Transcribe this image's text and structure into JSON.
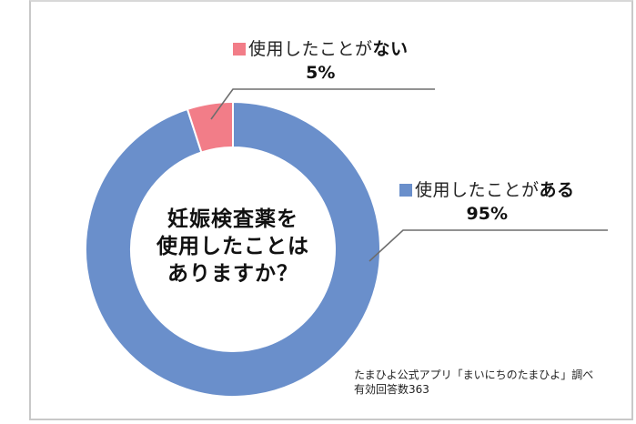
{
  "chart_data": {
    "type": "pie",
    "subtype": "donut",
    "title": "妊娠検査薬を使用したことはありますか？",
    "categories": [
      "使用したことがある",
      "使用したことがない"
    ],
    "values": [
      95,
      5
    ],
    "unit": "%",
    "colors": [
      "#6a8fcb",
      "#f27d88"
    ],
    "data_labels": [
      "95%",
      "5%"
    ],
    "legend": "inline data labels with leader lines",
    "source_note": "たまひよ公式アプリ「まいにちのたまひよ」調べ",
    "sample_size": 363
  },
  "center": {
    "line1": "妊娠検査薬を",
    "line2": "使用したことは",
    "line3": "ありますか？"
  },
  "labels": {
    "no": {
      "prefix": "使用したことが",
      "emph": "ない",
      "pct": "5%",
      "color": "#f27d88"
    },
    "yes": {
      "prefix": "使用したことが",
      "emph": "ある",
      "pct": "95%",
      "color": "#6a8fcb"
    }
  },
  "footer": {
    "source": "たまひよ公式アプリ「まいにちのたまひよ」調べ",
    "responses": "有効回答数363"
  }
}
